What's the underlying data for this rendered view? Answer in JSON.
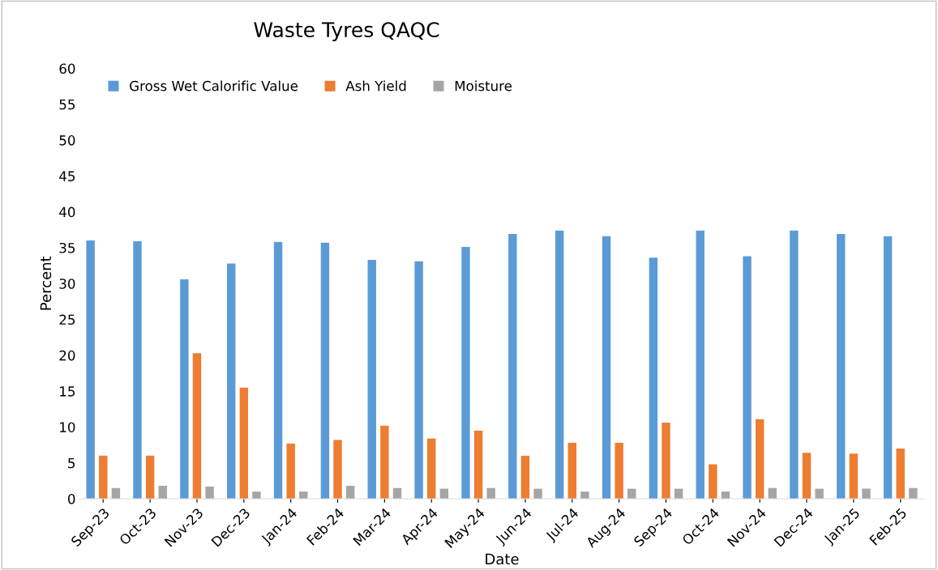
{
  "chart_data": {
    "type": "bar",
    "title": "Waste Tyres QAQC",
    "xlabel": "Date",
    "ylabel": "Percent",
    "categories": [
      "Sep-23",
      "Oct-23",
      "Nov-23",
      "Dec-23",
      "Jan-24",
      "Feb-24",
      "Mar-24",
      "Apr-24",
      "May-24",
      "Jun-24",
      "Jul-24",
      "Aug-24",
      "Sep-24",
      "Oct-24",
      "Nov-24",
      "Dec-24",
      "Jan-25",
      "Feb-25"
    ],
    "series": [
      {
        "name": "Gross Wet Calorific Value",
        "color": "#5b9bd5",
        "values": [
          36.0,
          35.9,
          30.6,
          32.8,
          35.8,
          35.7,
          33.3,
          33.1,
          35.1,
          36.9,
          37.4,
          36.6,
          33.6,
          37.4,
          33.8,
          37.4,
          36.9,
          36.6
        ]
      },
      {
        "name": "Ash Yield",
        "color": "#ed7d31",
        "values": [
          6.0,
          6.0,
          20.3,
          15.5,
          7.7,
          8.2,
          10.2,
          8.4,
          9.5,
          6.0,
          7.8,
          7.8,
          10.6,
          4.8,
          11.1,
          6.4,
          6.3,
          7.0
        ]
      },
      {
        "name": "Moisture",
        "color": "#a5a5a5",
        "values": [
          1.5,
          1.8,
          1.7,
          1.0,
          1.0,
          1.8,
          1.5,
          1.4,
          1.5,
          1.4,
          1.0,
          1.4,
          1.4,
          1.0,
          1.5,
          1.4,
          1.4,
          1.5
        ]
      }
    ],
    "ylim": [
      0,
      60
    ],
    "yticks": [
      0,
      5,
      10,
      15,
      20,
      25,
      30,
      35,
      40,
      45,
      50,
      55,
      60
    ],
    "grid": false,
    "legend": "top left"
  }
}
